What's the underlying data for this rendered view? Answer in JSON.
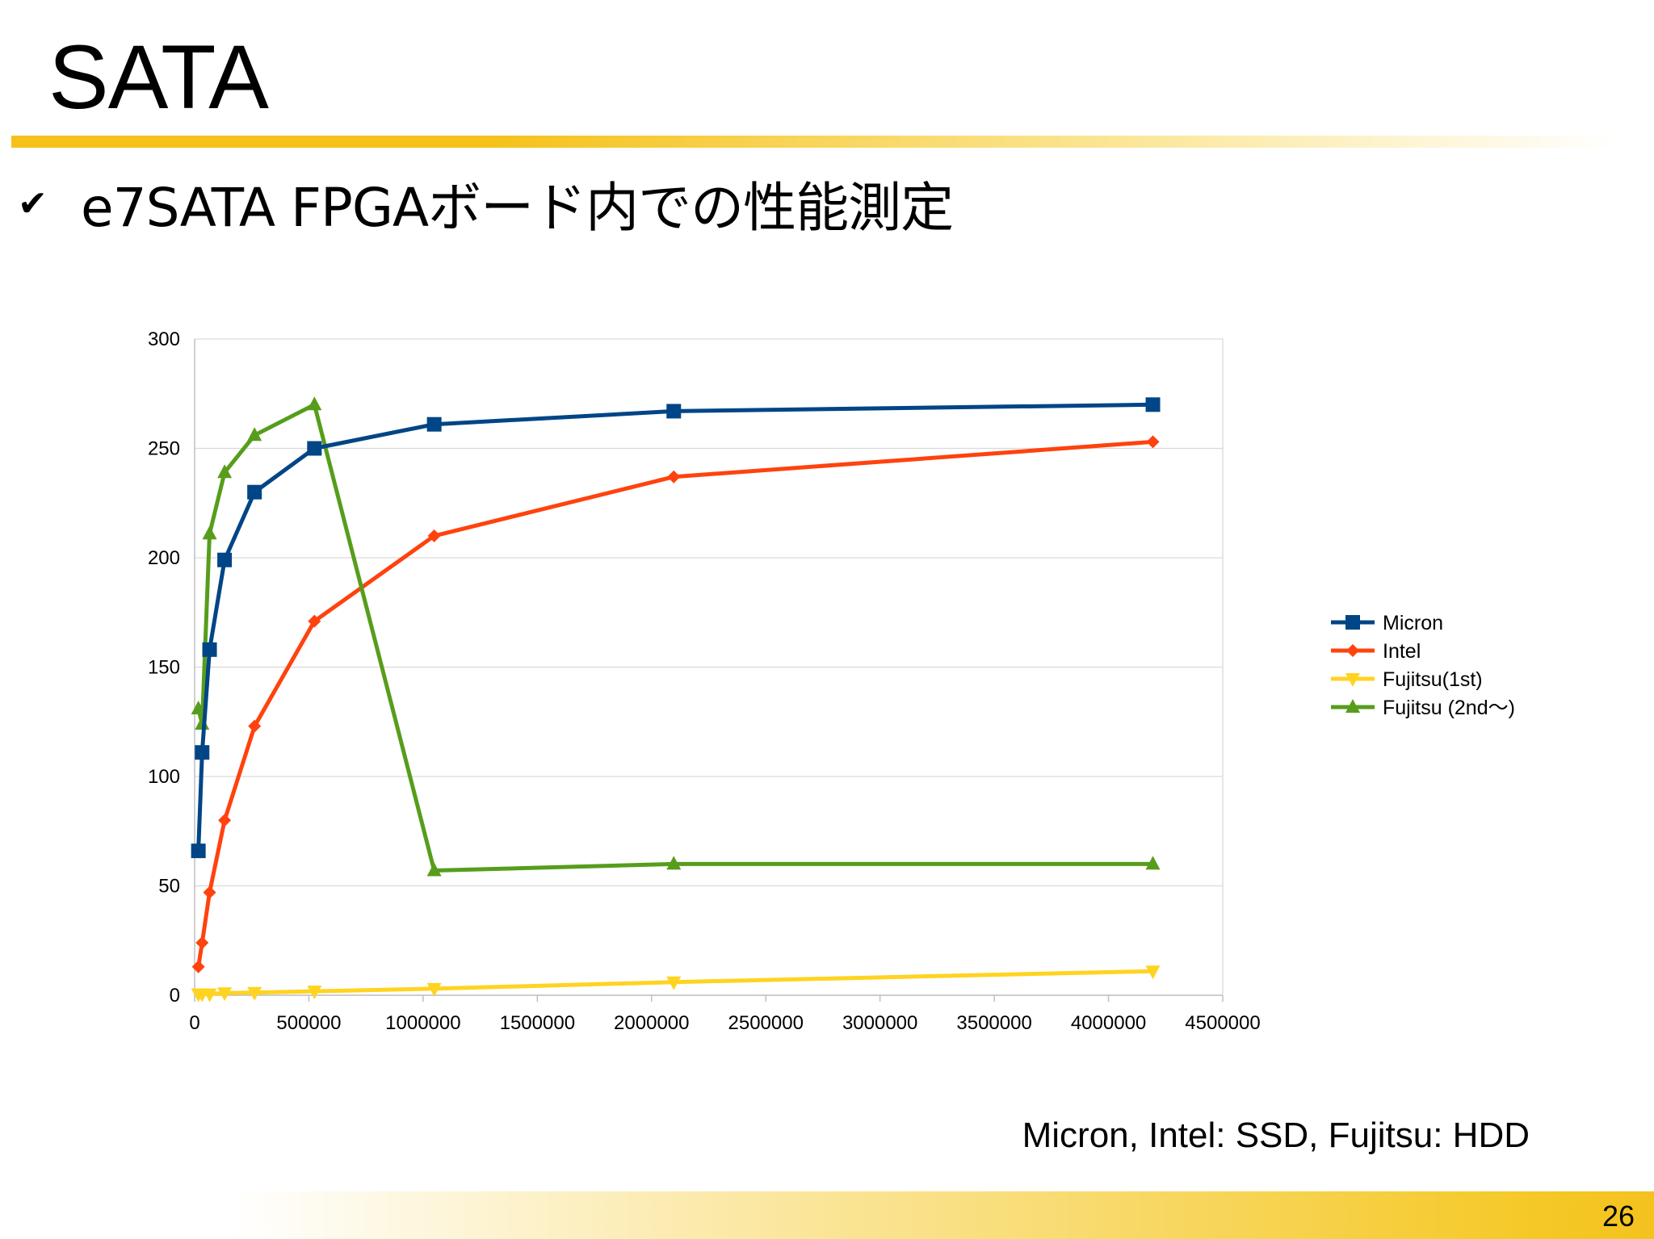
{
  "slide": {
    "title": "SATA",
    "bullet": "e7SATA FPGAボード内での性能測定",
    "footnote": "Micron, Intel: SSD, Fujitsu: HDD",
    "page_number": "26",
    "icons": {
      "bullet": "check-icon"
    }
  },
  "chart_data": {
    "type": "line",
    "title": "",
    "xlabel": "",
    "ylabel": "",
    "xlim": [
      0,
      4500000
    ],
    "ylim": [
      0,
      300
    ],
    "x_ticks": [
      0,
      500000,
      1000000,
      1500000,
      2000000,
      2500000,
      3000000,
      3500000,
      4000000,
      4500000
    ],
    "y_ticks": [
      0,
      50,
      100,
      150,
      200,
      250,
      300
    ],
    "grid": "horizontal",
    "legend_position": "right",
    "x": [
      16384,
      32768,
      65536,
      131072,
      262144,
      524288,
      1048576,
      2097152,
      4194304
    ],
    "series": [
      {
        "name": "Micron",
        "color": "#004586",
        "marker": "square",
        "values": [
          66,
          111,
          158,
          199,
          230,
          250,
          261,
          267,
          270
        ]
      },
      {
        "name": "Intel",
        "color": "#ff420e",
        "marker": "diamond",
        "values": [
          13,
          24,
          47,
          80,
          123,
          171,
          210,
          237,
          253
        ]
      },
      {
        "name": "Fujitsu(1st)",
        "color": "#ffd320",
        "marker": "triangle-down",
        "values": [
          0.5,
          0.5,
          0.5,
          1,
          1.2,
          1.8,
          3,
          6,
          11
        ]
      },
      {
        "name": "Fujitsu (2nd～)",
        "color": "#579d1c",
        "marker": "triangle-up",
        "values": [
          131,
          124,
          211,
          239,
          256,
          270,
          57,
          60,
          60
        ]
      }
    ]
  }
}
